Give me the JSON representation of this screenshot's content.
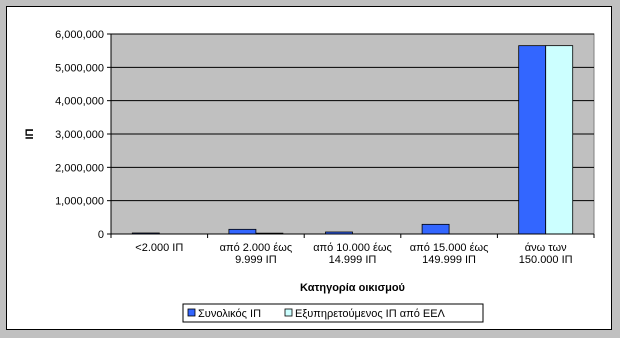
{
  "chart_data": {
    "type": "bar",
    "title": "",
    "xlabel": "Κατηγορία οικισμού",
    "ylabel": "ΙΠ",
    "ylim": [
      0,
      6000000
    ],
    "yticks": [
      0,
      1000000,
      2000000,
      3000000,
      4000000,
      5000000,
      6000000
    ],
    "ytick_labels": [
      "0",
      "1,000,000",
      "2,000,000",
      "3,000,000",
      "4,000,000",
      "5,000,000",
      "6,000,000"
    ],
    "categories": [
      [
        "<2.000 ΙΠ"
      ],
      [
        "από 2.000 έως",
        "9.999 ΙΠ"
      ],
      [
        "από 10.000 έως",
        "14.999 ΙΠ"
      ],
      [
        "από 15.000 έως",
        "149.999 ΙΠ"
      ],
      [
        "άνω των",
        "150.000 ΙΠ"
      ]
    ],
    "series": [
      {
        "name": "Συνολικός ΙΠ",
        "color": "#3366ff",
        "values": [
          30000,
          140000,
          60000,
          290000,
          5650000
        ]
      },
      {
        "name": "Εξυπηρετούμενος ΙΠ από ΕΕΛ",
        "color": "#ccffff",
        "values": [
          0,
          25000,
          0,
          0,
          5650000
        ]
      }
    ],
    "grid": true,
    "plot_background": "#c0c0c0",
    "legend": "bottom"
  }
}
